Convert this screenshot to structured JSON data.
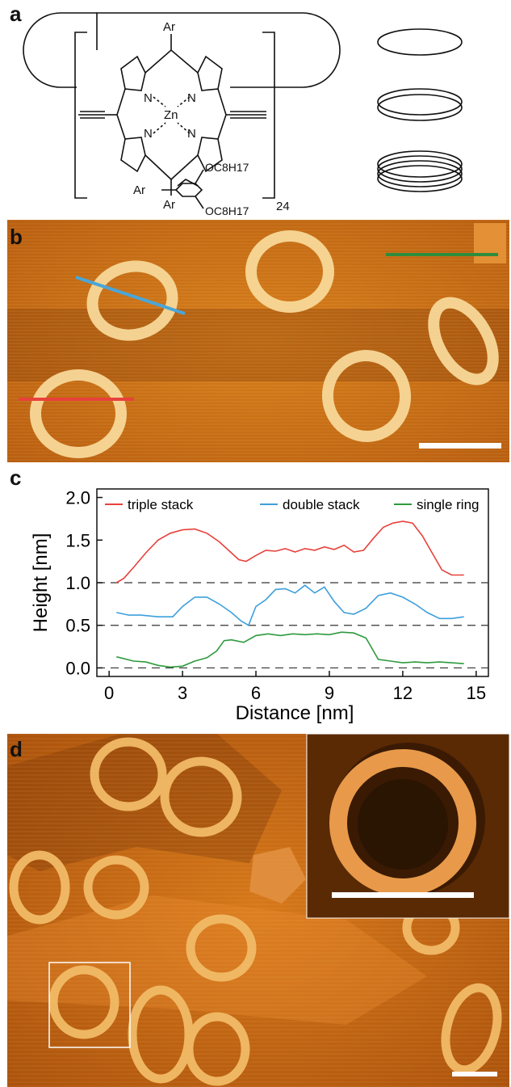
{
  "panels": {
    "a": {
      "letter": "a",
      "labels": {
        "ar_top": "Ar",
        "ar_bottom": "Ar",
        "zn": "Zn",
        "n": "N",
        "repeat": "24",
        "ar_def": "Ar",
        "substituent_top": "OC8H17",
        "substituent_bottom": "OC8H17"
      },
      "ring_icons": [
        "single ring",
        "double stack",
        "triple stack"
      ]
    },
    "b": {
      "letter": "b"
    },
    "c": {
      "letter": "c",
      "chart_data": {
        "type": "line",
        "xlabel": "Distance [nm]",
        "ylabel": "Height [nm]",
        "xlim": [
          -0.5,
          15.5
        ],
        "ylim": [
          -0.1,
          2.1
        ],
        "xticks": [
          0,
          3,
          6,
          9,
          12,
          15
        ],
        "yticks": [
          0.0,
          0.5,
          1.0,
          1.5,
          2.0
        ],
        "ytick_labels": [
          "0.0",
          "0.5",
          "1.0",
          "1.5",
          "2.0"
        ],
        "reference_lines": [
          0.0,
          0.5,
          1.0
        ],
        "legend_position": "top",
        "series": [
          {
            "name": "triple stack",
            "color": "#e8413c",
            "x": [
              0.3,
              0.6,
              1.0,
              1.5,
              2.0,
              2.5,
              3.0,
              3.5,
              4.0,
              4.5,
              5.0,
              5.3,
              5.6,
              6.0,
              6.4,
              6.8,
              7.2,
              7.6,
              8.0,
              8.4,
              8.8,
              9.2,
              9.6,
              10.0,
              10.4,
              10.8,
              11.2,
              11.6,
              12.0,
              12.4,
              12.8,
              13.2,
              13.6,
              14.0,
              14.5
            ],
            "y": [
              1.0,
              1.05,
              1.18,
              1.35,
              1.5,
              1.58,
              1.62,
              1.63,
              1.58,
              1.48,
              1.35,
              1.27,
              1.25,
              1.32,
              1.38,
              1.37,
              1.4,
              1.36,
              1.4,
              1.38,
              1.42,
              1.39,
              1.44,
              1.36,
              1.38,
              1.52,
              1.65,
              1.7,
              1.72,
              1.7,
              1.55,
              1.35,
              1.15,
              1.09,
              1.09
            ]
          },
          {
            "name": "double stack",
            "color": "#3d9fdc",
            "x": [
              0.3,
              0.8,
              1.3,
              2.0,
              2.6,
              3.0,
              3.5,
              4.0,
              4.5,
              5.0,
              5.4,
              5.7,
              6.0,
              6.4,
              6.8,
              7.2,
              7.6,
              8.0,
              8.4,
              8.8,
              9.2,
              9.6,
              10.0,
              10.5,
              11.0,
              11.5,
              12.0,
              12.5,
              13.0,
              13.5,
              14.0,
              14.5
            ],
            "y": [
              0.65,
              0.62,
              0.62,
              0.6,
              0.6,
              0.72,
              0.83,
              0.83,
              0.75,
              0.65,
              0.55,
              0.5,
              0.72,
              0.8,
              0.92,
              0.93,
              0.88,
              0.97,
              0.88,
              0.95,
              0.78,
              0.65,
              0.63,
              0.7,
              0.85,
              0.88,
              0.83,
              0.75,
              0.65,
              0.58,
              0.58,
              0.6
            ]
          },
          {
            "name": "single ring",
            "color": "#2e9a3e",
            "x": [
              0.3,
              1.0,
              1.5,
              2.0,
              2.5,
              3.0,
              3.5,
              4.0,
              4.4,
              4.7,
              5.0,
              5.5,
              6.0,
              6.5,
              7.0,
              7.5,
              8.0,
              8.5,
              9.0,
              9.5,
              10.0,
              10.5,
              11.0,
              11.5,
              12.0,
              12.5,
              13.0,
              13.5,
              14.0,
              14.5
            ],
            "y": [
              0.13,
              0.08,
              0.07,
              0.03,
              0.01,
              0.02,
              0.08,
              0.12,
              0.2,
              0.32,
              0.33,
              0.3,
              0.38,
              0.4,
              0.38,
              0.4,
              0.39,
              0.4,
              0.39,
              0.42,
              0.41,
              0.35,
              0.1,
              0.08,
              0.06,
              0.07,
              0.06,
              0.07,
              0.06,
              0.05
            ]
          }
        ]
      }
    },
    "d": {
      "letter": "d"
    }
  },
  "colors": {
    "stm_dark": "#7a3a06",
    "stm_mid": "#c86a10",
    "stm_bright": "#f7c874",
    "scale_bar": "#ffffff"
  }
}
